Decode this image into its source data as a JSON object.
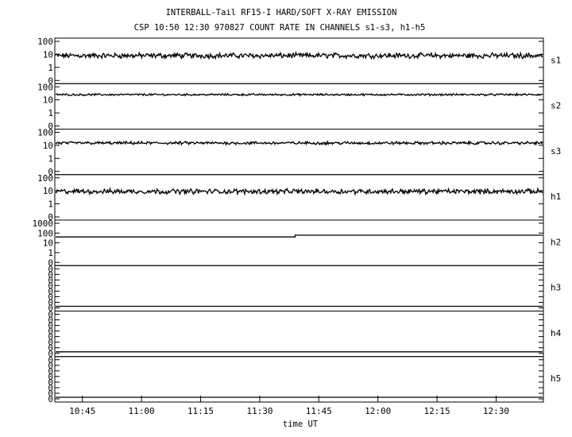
{
  "title_line1": "INTERBALL-Tail RF15-I HARD/SOFT X-RAY EMISSION",
  "title_line2": "CSP 10:50 12:30 970827  COUNT RATE IN CHANNELS s1-s3, h1-h5",
  "chart_data": {
    "type": "line",
    "xlabel": "time UT",
    "x_range": [
      "10:38",
      "12:42"
    ],
    "x_ticks": [
      "10:45",
      "11:00",
      "11:15",
      "11:30",
      "11:45",
      "12:00",
      "12:15",
      "12:30"
    ],
    "grid": false,
    "panels": [
      {
        "name": "s1",
        "scale": "log",
        "tick_labels": [
          "100",
          "10",
          "1",
          "0"
        ],
        "level": 8,
        "noise": 0.16
      },
      {
        "name": "s2",
        "scale": "log",
        "tick_labels": [
          "100",
          "10",
          "1",
          "0"
        ],
        "level": 25,
        "noise": 0.06
      },
      {
        "name": "s3",
        "scale": "log",
        "tick_labels": [
          "100",
          "10",
          "1",
          "0"
        ],
        "level": 15,
        "noise": 0.09
      },
      {
        "name": "h1",
        "scale": "log",
        "tick_labels": [
          "100",
          "10",
          "1",
          "0"
        ],
        "level": 9,
        "noise": 0.15
      },
      {
        "name": "h2",
        "scale": "log",
        "tick_labels": [
          "1000",
          "100",
          "10",
          "1",
          "0"
        ],
        "level": 40,
        "step_time": "11:39",
        "level_after": 60
      },
      {
        "name": "h3",
        "scale": "linear",
        "tick_labels": [
          "0",
          "0",
          "0",
          "0",
          "0",
          "0",
          "0",
          "0"
        ],
        "level": 0
      },
      {
        "name": "h4",
        "scale": "linear",
        "tick_labels": [
          "0",
          "0",
          "0",
          "0",
          "0",
          "0",
          "0",
          "0"
        ],
        "level": 0
      },
      {
        "name": "h5",
        "scale": "linear",
        "tick_labels": [
          "0",
          "0",
          "0",
          "0",
          "0",
          "0",
          "0",
          "0"
        ],
        "level": 0
      }
    ]
  }
}
